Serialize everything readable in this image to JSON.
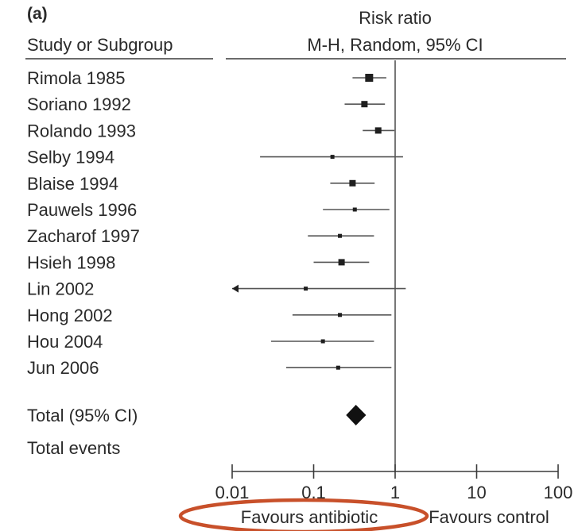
{
  "chart_data": {
    "type": "forest",
    "panel_label": "(a)",
    "column_header": "Study or Subgroup",
    "effect_header_line1": "Risk ratio",
    "effect_header_line2": "M-H, Random, 95% CI",
    "xscale": "log",
    "xlim": [
      0.01,
      100
    ],
    "ticks": [
      {
        "value": 0.01,
        "label": "0.01"
      },
      {
        "value": 0.1,
        "label": "0.1"
      },
      {
        "value": 1,
        "label": "1"
      },
      {
        "value": 10,
        "label": "10"
      },
      {
        "value": 100,
        "label": "100"
      }
    ],
    "reference_line": 1,
    "studies": [
      {
        "name": "Rimola 1985",
        "rr": 0.48,
        "lower": 0.3,
        "upper": 0.78,
        "weight": "large"
      },
      {
        "name": "Soriano 1992",
        "rr": 0.42,
        "lower": 0.24,
        "upper": 0.75,
        "weight": "medium"
      },
      {
        "name": "Rolando 1993",
        "rr": 0.62,
        "lower": 0.4,
        "upper": 0.98,
        "weight": "medium"
      },
      {
        "name": "Selby 1994",
        "rr": 0.17,
        "lower": 0.022,
        "upper": 1.25,
        "weight": "small"
      },
      {
        "name": "Blaise 1994",
        "rr": 0.3,
        "lower": 0.16,
        "upper": 0.56,
        "weight": "medium"
      },
      {
        "name": "Pauwels 1996",
        "rr": 0.32,
        "lower": 0.13,
        "upper": 0.85,
        "weight": "small"
      },
      {
        "name": "Zacharof 1997",
        "rr": 0.21,
        "lower": 0.085,
        "upper": 0.55,
        "weight": "small"
      },
      {
        "name": "Hsieh 1998",
        "rr": 0.22,
        "lower": 0.1,
        "upper": 0.48,
        "weight": "medium"
      },
      {
        "name": "Lin 2002",
        "rr": 0.08,
        "lower": 0.01,
        "upper": 1.35,
        "weight": "small",
        "lower_arrow": true
      },
      {
        "name": "Hong 2002",
        "rr": 0.21,
        "lower": 0.055,
        "upper": 0.9,
        "weight": "small"
      },
      {
        "name": "Hou 2004",
        "rr": 0.13,
        "lower": 0.03,
        "upper": 0.55,
        "weight": "small"
      },
      {
        "name": "Jun 2006",
        "rr": 0.2,
        "lower": 0.046,
        "upper": 0.9,
        "weight": "small"
      }
    ],
    "total": {
      "name": "Total (95% CI)",
      "rr": 0.33,
      "lower": 0.25,
      "upper": 0.44
    },
    "total_events_label": "Total events",
    "favours_left": "Favours antibiotic",
    "favours_right": "Favours control",
    "highlight_color": "#c8502a"
  }
}
